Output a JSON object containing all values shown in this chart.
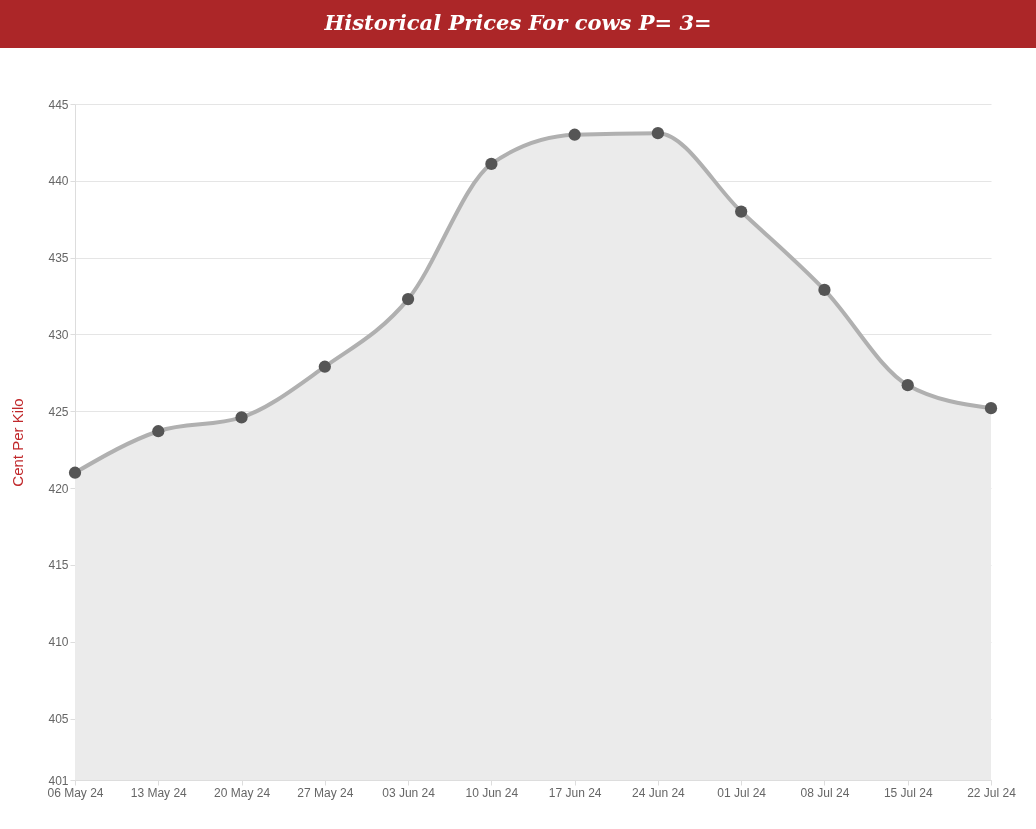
{
  "chart_data": {
    "type": "area",
    "title": "Historical Prices For cows P= 3=",
    "ylabel": "Cent Per Kilo",
    "categories": [
      "06 May 24",
      "13 May 24",
      "20 May 24",
      "27 May 24",
      "03 Jun 24",
      "10 Jun 24",
      "17 Jun 24",
      "24 Jun 24",
      "01 Jul 24",
      "08 Jul 24",
      "15 Jul 24",
      "22 Jul 24"
    ],
    "series": [
      {
        "color": "#b0b0b0",
        "values": [
          421.0,
          423.7,
          424.6,
          427.9,
          432.3,
          441.1,
          443.0,
          443.1,
          438.0,
          432.9,
          426.7,
          425.2
        ]
      }
    ],
    "ylim": [
      401,
      445
    ],
    "yticks": [
      401,
      405,
      410,
      415,
      420,
      425,
      430,
      435,
      440,
      445
    ],
    "grid": "y",
    "marker": "circle",
    "line_style": "solid",
    "legend": false
  }
}
